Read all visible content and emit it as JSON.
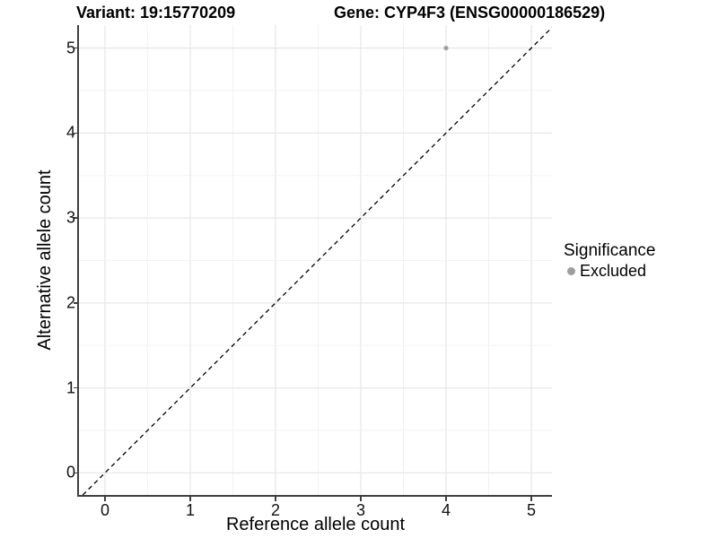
{
  "header": {
    "variant_title": "Variant: 19:15770209",
    "gene_title": "Gene: CYP4F3 (ENSG00000186529)"
  },
  "chart_data": {
    "type": "scatter",
    "title": "Variant: 19:15770209 — Gene: CYP4F3 (ENSG00000186529)",
    "xlabel": "Reference allele count",
    "ylabel": "Alternative allele count",
    "x_ticks": [
      0,
      1,
      2,
      3,
      4,
      5
    ],
    "y_ticks": [
      0,
      1,
      2,
      3,
      4,
      5
    ],
    "xlim": [
      -0.305,
      5.242
    ],
    "ylim": [
      -0.26,
      5.27
    ],
    "grid": {
      "show": true,
      "minor_every": 0.5,
      "major_color": "#e7e7e7",
      "minor_color": "#f2f2f2"
    },
    "series": [
      {
        "name": "Excluded",
        "color": "#9e9e9e",
        "point_radius_px": 2.6,
        "points": [
          {
            "x": 4,
            "y": 5
          }
        ]
      }
    ],
    "reference_line": {
      "kind": "identity",
      "slope": 1,
      "intercept": 0,
      "style": "dashed",
      "color": "#000000"
    },
    "legend_position": "right"
  },
  "legend": {
    "title": "Significance",
    "entries": [
      {
        "label": "Excluded",
        "color": "#9e9e9e"
      }
    ]
  },
  "colors": {
    "axis_line": "#3f3f3f",
    "tick_mark": "#3f3f3f",
    "background": "#ffffff"
  }
}
